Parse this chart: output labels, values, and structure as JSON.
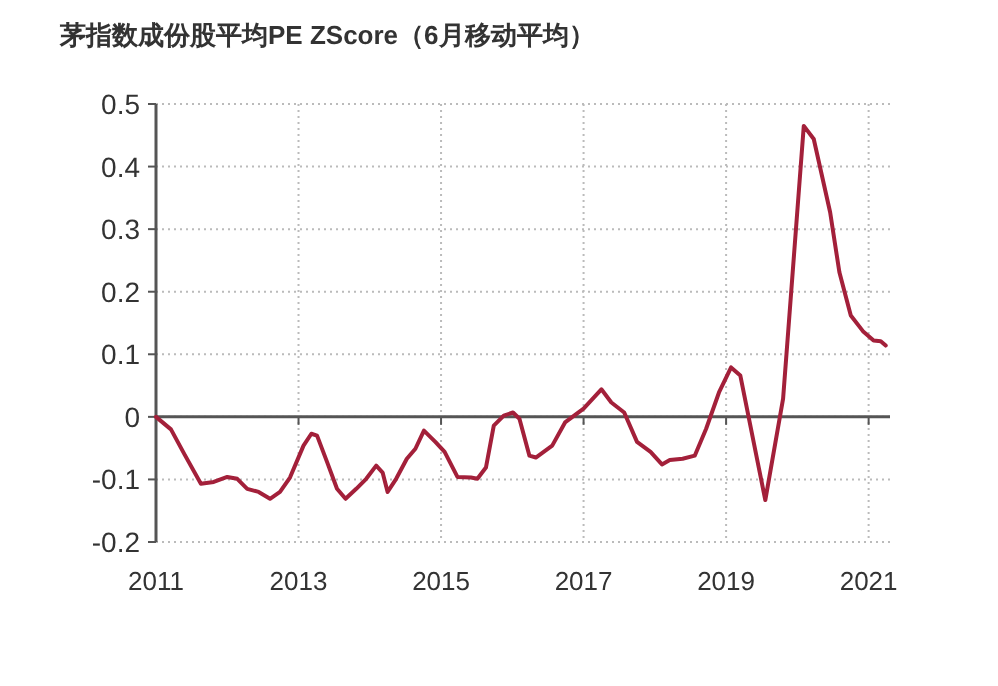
{
  "chart_data": {
    "type": "line",
    "title": "茅指数成份股平均PE ZScore（6月移动平均）",
    "x": [
      2011.0,
      2011.21,
      2011.4,
      2011.63,
      2011.81,
      2012.0,
      2012.14,
      2012.28,
      2012.44,
      2012.6,
      2012.74,
      2012.88,
      2013.07,
      2013.18,
      2013.26,
      2013.4,
      2013.54,
      2013.66,
      2013.81,
      2013.95,
      2014.09,
      2014.18,
      2014.25,
      2014.37,
      2014.52,
      2014.64,
      2014.76,
      2014.92,
      2015.05,
      2015.23,
      2015.42,
      2015.51,
      2015.63,
      2015.74,
      2015.88,
      2016.01,
      2016.1,
      2016.24,
      2016.33,
      2016.56,
      2016.74,
      2017.0,
      2017.25,
      2017.39,
      2017.57,
      2017.75,
      2017.94,
      2018.1,
      2018.21,
      2018.39,
      2018.56,
      2018.72,
      2018.9,
      2019.07,
      2019.2,
      2019.55,
      2019.8,
      2020.09,
      2020.23,
      2020.46,
      2020.59,
      2020.75,
      2020.92,
      2021.07,
      2021.17,
      2021.24
    ],
    "series": [
      {
        "color": "#a3203a",
        "values": [
          0,
          -0.02,
          -0.06,
          -0.107,
          -0.104,
          -0.096,
          -0.099,
          -0.115,
          -0.12,
          -0.131,
          -0.12,
          -0.097,
          -0.046,
          -0.027,
          -0.03,
          -0.072,
          -0.115,
          -0.131,
          -0.115,
          -0.099,
          -0.078,
          -0.089,
          -0.12,
          -0.099,
          -0.067,
          -0.051,
          -0.022,
          -0.04,
          -0.056,
          -0.096,
          -0.097,
          -0.099,
          -0.081,
          -0.014,
          0.002,
          0.007,
          -0.003,
          -0.062,
          -0.065,
          -0.046,
          -0.009,
          0.013,
          0.044,
          0.023,
          0.007,
          -0.04,
          -0.056,
          -0.076,
          -0.069,
          -0.067,
          -0.062,
          -0.019,
          0.039,
          0.079,
          0.066,
          -0.133,
          0.029,
          0.465,
          0.444,
          0.327,
          0.231,
          0.162,
          0.137,
          0.122,
          0.121,
          0.114
        ]
      }
    ],
    "xlim": [
      2011,
      2021.3
    ],
    "xticks": [
      2011,
      2013,
      2015,
      2017,
      2019,
      2021
    ],
    "ylim": [
      -0.2,
      0.5
    ],
    "yticks": [
      {
        "value": -0.2,
        "label": "-0.2"
      },
      {
        "value": -0.1,
        "label": "-0.1"
      },
      0,
      0.1,
      0.2,
      0.3,
      0.4,
      0.5
    ],
    "grid": true,
    "line_style": "solid",
    "marker": "none"
  }
}
